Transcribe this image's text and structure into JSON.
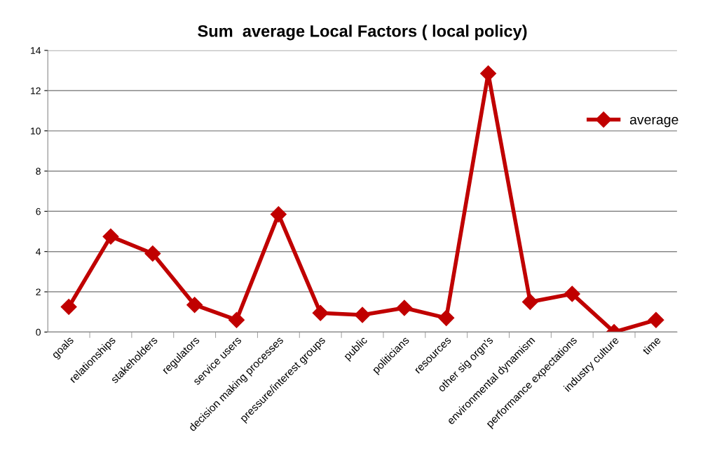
{
  "chart_data": {
    "type": "line",
    "title": "Sum  average Local Factors ( local policy)",
    "categories": [
      "goals",
      "relationships",
      "stakeholders",
      "regulators",
      "service users",
      "decision making processes",
      "pressure/interest groups",
      "public",
      "politicians",
      "resources",
      "other sig orgn's",
      "environmental dynamism",
      "performance expectations",
      "industry culture",
      "time"
    ],
    "series": [
      {
        "name": "average",
        "color": "#c00000",
        "values": [
          1.25,
          4.75,
          3.9,
          1.35,
          0.6,
          5.85,
          0.95,
          0.85,
          1.2,
          0.7,
          12.85,
          1.5,
          1.9,
          0,
          0.6
        ]
      }
    ],
    "ylim": [
      0,
      14
    ],
    "yticks": [
      0,
      2,
      4,
      6,
      8,
      10,
      12,
      14
    ],
    "grid": "y",
    "legend": "right",
    "marker": "diamond",
    "line_style": "solid"
  }
}
